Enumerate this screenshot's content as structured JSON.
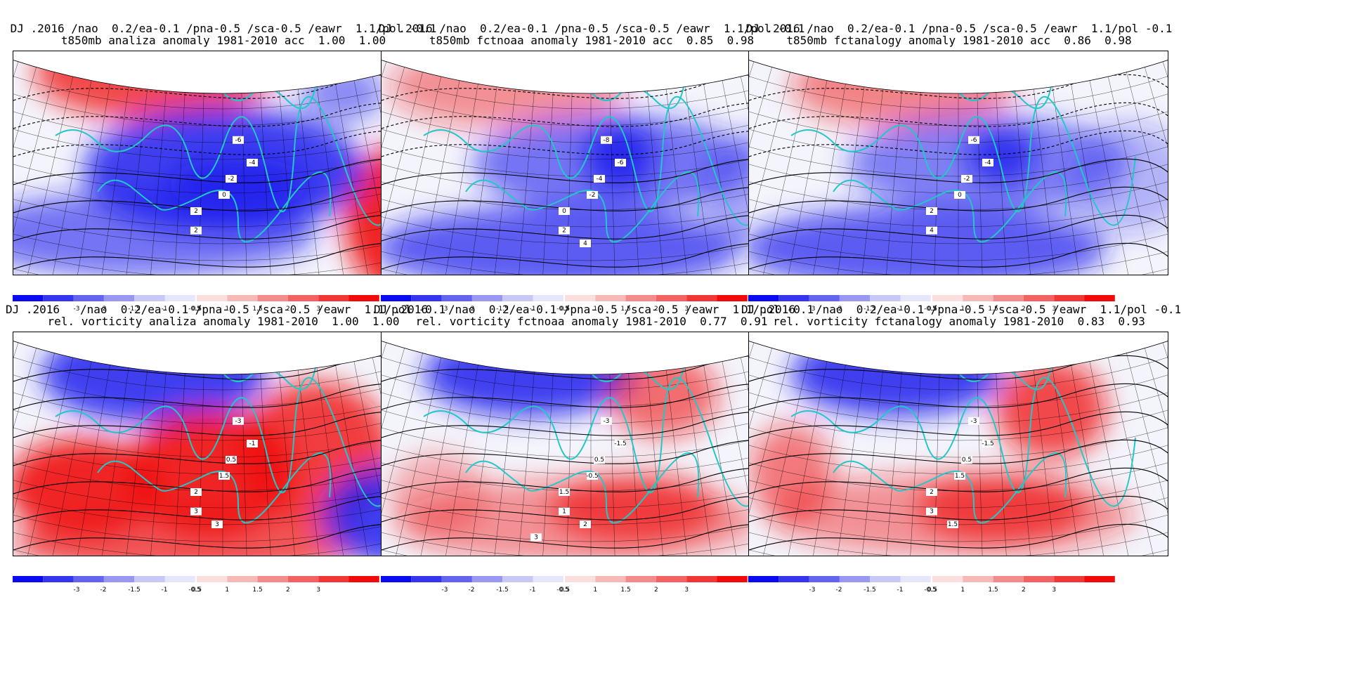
{
  "panels": [
    {
      "id": "p1",
      "line1": "DJ .2016 /nao  0.2/ea-0.1 /pna-0.5 /sca-0.5 /eawr  1.1/pol -0.1",
      "line2": "t850mb analiza anomaly 1981-2010 acc  1.00  1.00",
      "contour_labels": [
        "-6",
        "-4",
        "-2",
        "0",
        "2",
        "2"
      ]
    },
    {
      "id": "p2",
      "line1": "DJ .2016 /nao  0.2/ea-0.1 /pna-0.5 /sca-0.5 /eawr  1.1/pol -0.1",
      "line2": "t850mb fctnoaa anomaly 1981-2010 acc  0.85  0.98",
      "contour_labels": [
        "-8",
        "-6",
        "-4",
        "-2",
        "0",
        "2",
        "4"
      ]
    },
    {
      "id": "p3",
      "line1": "DJ .2016 /nao  0.2/ea-0.1 /pna-0.5 /sca-0.5 /eawr  1.1/pol -0.1",
      "line2": "t850mb fctanalogy anomaly 1981-2010 acc  0.86  0.98",
      "contour_labels": [
        "-6",
        "-4",
        "-2",
        "0",
        "2",
        "4"
      ]
    },
    {
      "id": "p4",
      "line1": "DJ .2016   /nao  0.2/ea-0.1 /pna-0.5 /sca-0.5 /eawr  1.1/pol -0.1",
      "line2": "rel. vorticity analiza anomaly 1981-2010  1.00  1.00",
      "contour_labels": [
        "-3",
        "-1",
        "0.5",
        "1.5",
        "2",
        "3",
        "3"
      ]
    },
    {
      "id": "p5",
      "line1": "DJ .2016   /nao  0.2/ea-0.1 /pna-0.5 /sca-0.5 /eawr  1.1/pol -0.1",
      "line2": "rel. vorticity fctnoaa anomaly 1981-2010  0.77  0.91",
      "contour_labels": [
        "-3",
        "-1.5",
        "0.5",
        "-0.5",
        "1.5",
        "1",
        "2",
        "3"
      ]
    },
    {
      "id": "p6",
      "line1": "DJ .2016   /nao  0.2/ea-0.1 /pna-0.5 /sca-0.5 /eawr  1.1/pol -0.1",
      "line2": "rel. vorticity fctanalogy anomaly 1981-2010  0.83  0.93",
      "contour_labels": [
        "-3",
        "-1.5",
        "0.5",
        "1.5",
        "2",
        "3",
        "1.5"
      ]
    }
  ],
  "colorbar": {
    "labels": [
      "-3",
      "-2",
      "-1.5",
      "-1",
      "-0.5",
      "0.5",
      "1",
      "1.5",
      "2",
      "3"
    ],
    "neg_colors": [
      "#0a0af0",
      "#3535ef",
      "#6464f0",
      "#9898f2",
      "#c8c8f7",
      "#e6e6fb"
    ],
    "pos_colors": [
      "#fbdede",
      "#f7b8b8",
      "#f28c8c",
      "#f26262",
      "#f13636",
      "#f10a0a"
    ]
  },
  "colors": {
    "coast": "#22c8c8",
    "negative": "#2020ee",
    "positive": "#f01010"
  }
}
